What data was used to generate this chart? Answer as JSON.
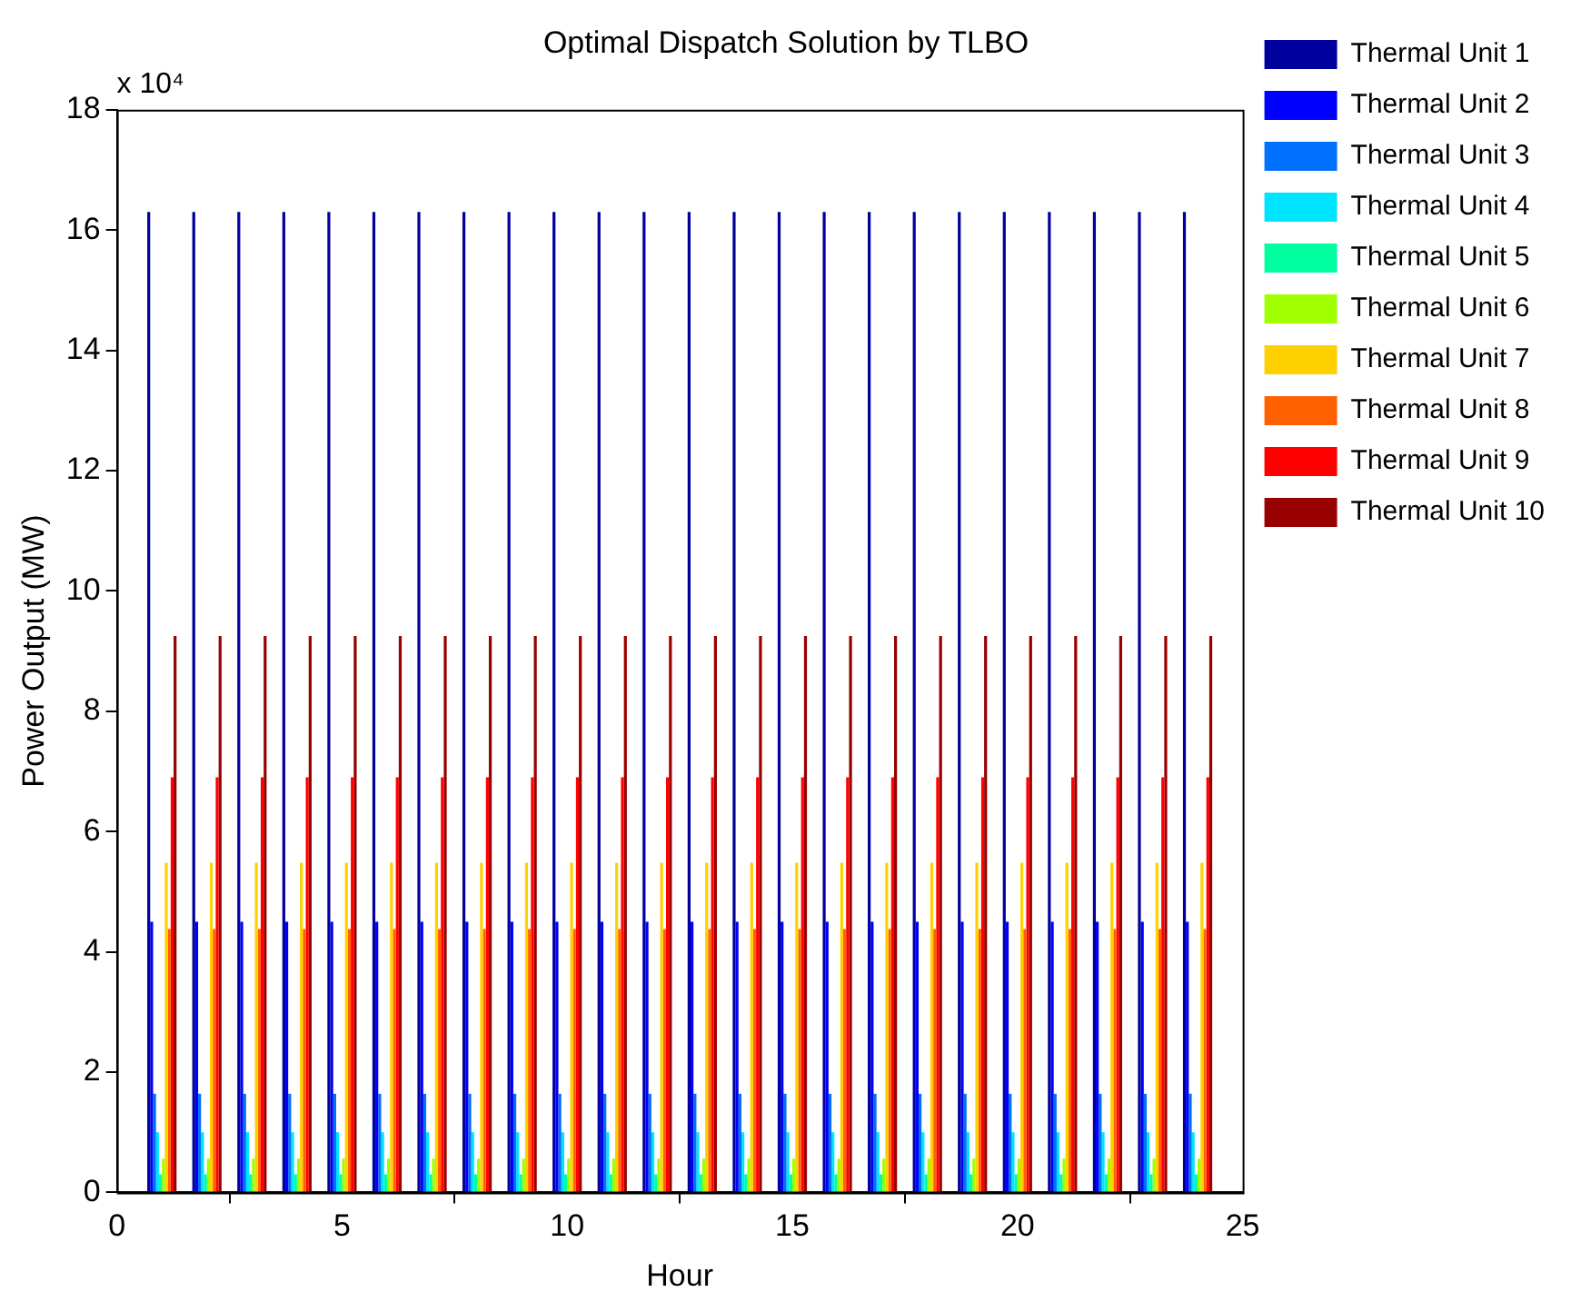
{
  "chart_data": {
    "type": "bar",
    "title": "Optimal Dispatch Solution by TLBO",
    "xlabel": "Hour",
    "ylabel": "Power Output (MW)",
    "annotations": [
      "x 10⁴"
    ],
    "x": [
      1,
      2,
      3,
      4,
      5,
      6,
      7,
      8,
      9,
      10,
      11,
      12,
      13,
      14,
      15,
      16,
      17,
      18,
      19,
      20,
      21,
      22,
      23,
      24
    ],
    "xlim": [
      0,
      25
    ],
    "xticks": [
      0,
      5,
      10,
      15,
      20,
      25
    ],
    "ylim": [
      0,
      18
    ],
    "yticks": [
      0,
      2,
      4,
      6,
      8,
      10,
      12,
      14,
      16,
      18
    ],
    "legend": "top right",
    "series": [
      {
        "name": "Thermal Unit 1",
        "color": "#00009c",
        "values": [
          16.3,
          16.3,
          16.3,
          16.3,
          16.3,
          16.3,
          16.3,
          16.3,
          16.3,
          16.3,
          16.3,
          16.3,
          16.3,
          16.3,
          16.3,
          16.3,
          16.3,
          16.3,
          16.3,
          16.3,
          16.3,
          16.3,
          16.3,
          16.3
        ]
      },
      {
        "name": "Thermal Unit 2",
        "color": "#0000ff",
        "values": [
          4.5,
          4.5,
          4.5,
          4.5,
          4.5,
          4.5,
          4.5,
          4.5,
          4.5,
          4.5,
          4.5,
          4.5,
          4.5,
          4.5,
          4.5,
          4.5,
          4.5,
          4.5,
          4.5,
          4.5,
          4.5,
          4.5,
          4.5,
          4.5
        ]
      },
      {
        "name": "Thermal Unit 3",
        "color": "#0070ff",
        "values": [
          1.64,
          1.64,
          1.64,
          1.64,
          1.64,
          1.64,
          1.64,
          1.64,
          1.64,
          1.64,
          1.64,
          1.64,
          1.64,
          1.64,
          1.64,
          1.64,
          1.64,
          1.64,
          1.64,
          1.64,
          1.64,
          1.64,
          1.64,
          1.64
        ]
      },
      {
        "name": "Thermal Unit 4",
        "color": "#00e5ff",
        "values": [
          1.0,
          1.0,
          1.0,
          1.0,
          1.0,
          1.0,
          1.0,
          1.0,
          1.0,
          1.0,
          1.0,
          1.0,
          1.0,
          1.0,
          1.0,
          1.0,
          1.0,
          1.0,
          1.0,
          1.0,
          1.0,
          1.0,
          1.0,
          1.0
        ]
      },
      {
        "name": "Thermal Unit 5",
        "color": "#00ffa0",
        "values": [
          0.3,
          0.3,
          0.3,
          0.3,
          0.3,
          0.3,
          0.3,
          0.3,
          0.3,
          0.3,
          0.3,
          0.3,
          0.3,
          0.3,
          0.3,
          0.3,
          0.3,
          0.3,
          0.3,
          0.3,
          0.3,
          0.3,
          0.3,
          0.3
        ]
      },
      {
        "name": "Thermal Unit 6",
        "color": "#a0ff00",
        "values": [
          0.56,
          0.56,
          0.56,
          0.56,
          0.56,
          0.56,
          0.56,
          0.56,
          0.56,
          0.56,
          0.56,
          0.56,
          0.56,
          0.56,
          0.56,
          0.56,
          0.56,
          0.56,
          0.56,
          0.56,
          0.56,
          0.56,
          0.56,
          0.56
        ]
      },
      {
        "name": "Thermal Unit 7",
        "color": "#ffd000",
        "values": [
          5.48,
          5.48,
          5.48,
          5.48,
          5.48,
          5.48,
          5.48,
          5.48,
          5.48,
          5.48,
          5.48,
          5.48,
          5.48,
          5.48,
          5.48,
          5.48,
          5.48,
          5.48,
          5.48,
          5.48,
          5.48,
          5.48,
          5.48,
          5.48
        ]
      },
      {
        "name": "Thermal Unit 8",
        "color": "#ff6000",
        "values": [
          4.38,
          4.38,
          4.38,
          4.38,
          4.38,
          4.38,
          4.38,
          4.38,
          4.38,
          4.38,
          4.38,
          4.38,
          4.38,
          4.38,
          4.38,
          4.38,
          4.38,
          4.38,
          4.38,
          4.38,
          4.38,
          4.38,
          4.38,
          4.38
        ]
      },
      {
        "name": "Thermal Unit 9",
        "color": "#ff0000",
        "values": [
          6.9,
          6.9,
          6.9,
          6.9,
          6.9,
          6.9,
          6.9,
          6.9,
          6.9,
          6.9,
          6.9,
          6.9,
          6.9,
          6.9,
          6.9,
          6.9,
          6.9,
          6.9,
          6.9,
          6.9,
          6.9,
          6.9,
          6.9,
          6.9
        ]
      },
      {
        "name": "Thermal Unit 10",
        "color": "#990000",
        "values": [
          9.25,
          9.25,
          9.25,
          9.25,
          9.25,
          9.25,
          9.25,
          9.25,
          9.25,
          9.25,
          9.25,
          9.25,
          9.25,
          9.25,
          9.25,
          9.25,
          9.25,
          9.25,
          9.25,
          9.25,
          9.25,
          9.25,
          9.25,
          9.25
        ]
      }
    ]
  }
}
